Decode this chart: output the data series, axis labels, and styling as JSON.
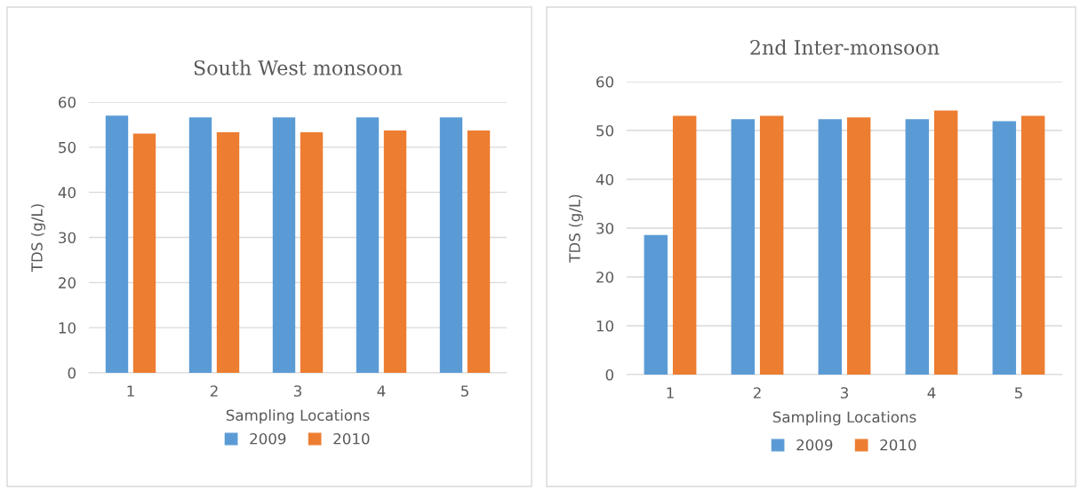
{
  "chart_data": [
    {
      "type": "bar",
      "title": "South West monsoon",
      "xlabel": "Sampling Locations",
      "ylabel": "TDS (g/L)",
      "categories": [
        "1",
        "2",
        "3",
        "4",
        "5"
      ],
      "series": [
        {
          "name": "2009",
          "color": "#5b9bd5",
          "values": [
            57.0,
            56.6,
            56.6,
            56.6,
            56.6
          ]
        },
        {
          "name": "2010",
          "color": "#ed7d31",
          "values": [
            53.0,
            53.3,
            53.3,
            53.7,
            53.7
          ]
        }
      ],
      "ylim": [
        0,
        60
      ],
      "yticks": [
        0,
        10,
        20,
        30,
        40,
        50,
        60
      ],
      "grid": "y",
      "legend": "bottom"
    },
    {
      "type": "bar",
      "title": "2nd Inter-monsoon",
      "xlabel": "Sampling Locations",
      "ylabel": "TDS (g/L)",
      "categories": [
        "1",
        "2",
        "3",
        "4",
        "5"
      ],
      "series": [
        {
          "name": "2009",
          "color": "#5b9bd5",
          "values": [
            28.6,
            52.3,
            52.3,
            52.3,
            51.9
          ]
        },
        {
          "name": "2010",
          "color": "#ed7d31",
          "values": [
            53.0,
            53.0,
            52.7,
            54.1,
            53.0
          ]
        }
      ],
      "ylim": [
        0,
        60
      ],
      "yticks": [
        0,
        10,
        20,
        30,
        40,
        50,
        60
      ],
      "grid": "y",
      "legend": "bottom"
    }
  ]
}
